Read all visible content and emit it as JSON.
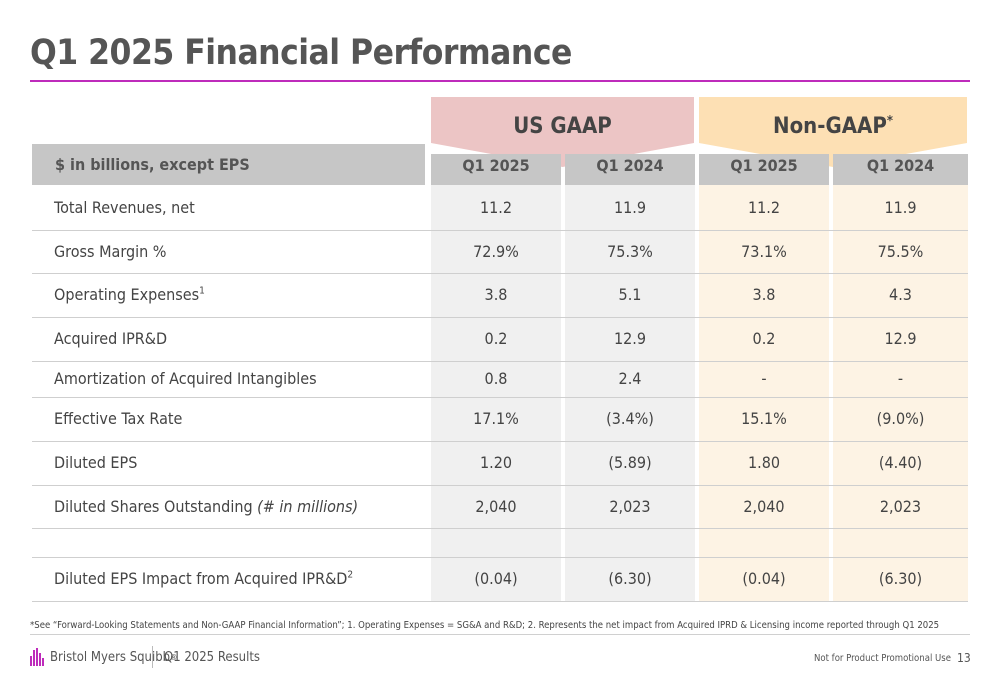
{
  "title": "Q1 2025 Financial Performance",
  "groups": {
    "gaap": "US GAAP",
    "non_gaap": "Non-GAAP",
    "non_gaap_mark": "*"
  },
  "header": {
    "label": "$ in billions, except EPS",
    "cols": [
      "Q1 2025",
      "Q1 2024",
      "Q1 2025",
      "Q1 2024"
    ]
  },
  "rows": [
    {
      "label": "Total Revenues, net",
      "sup": "",
      "values": [
        "11.2",
        "11.9",
        "11.2",
        "11.9"
      ]
    },
    {
      "label": "Gross Margin %",
      "sup": "",
      "values": [
        "72.9%",
        "75.3%",
        "73.1%",
        "75.5%"
      ]
    },
    {
      "label": "Operating Expenses",
      "sup": "1",
      "values": [
        "3.8",
        "5.1",
        "3.8",
        "4.3"
      ]
    },
    {
      "label": "Acquired IPR&D",
      "sup": "",
      "values": [
        "0.2",
        "12.9",
        "0.2",
        "12.9"
      ]
    },
    {
      "label": "Amortization of Acquired Intangibles",
      "sup": "",
      "values": [
        "0.8",
        "2.4",
        "-",
        "-"
      ]
    },
    {
      "label": "Effective Tax Rate",
      "sup": "",
      "values": [
        "17.1%",
        "(3.4%)",
        "15.1%",
        "(9.0%)"
      ]
    },
    {
      "label": "Diluted EPS",
      "sup": "",
      "values": [
        "1.20",
        "(5.89)",
        "1.80",
        "(4.40)"
      ]
    },
    {
      "label": "Diluted Shares Outstanding ",
      "italic": "(# in millions)",
      "sup": "",
      "values": [
        "2,040",
        "2,023",
        "2,040",
        "2,023"
      ]
    }
  ],
  "impact_row": {
    "label": "Diluted EPS Impact from Acquired IPR&D",
    "sup": "2",
    "values": [
      "(0.04)",
      "(6.30)",
      "(0.04)",
      "(6.30)"
    ]
  },
  "footnote": "*See “Forward-Looking Statements and Non-GAAP Financial Information”; 1. Operating Expenses = SG&A and R&D; 2. Represents the net impact from Acquired IPRD & Licensing income reported through Q1 2025",
  "footer": {
    "company": "Bristol Myers Squibb",
    "trademark": "®",
    "results": "Q1 2025 Results",
    "promo": "Not for Product Promotional Use",
    "page": "13"
  },
  "colors": {
    "accent": "#be2bbb",
    "gaap_bg": "#ecc5c5",
    "non_gaap_bg": "#fde0b4",
    "gaap_col_bg": "#f0f0f0",
    "non_gaap_col_bg": "#fdf3e4",
    "header_bg": "#c6c6c6"
  }
}
